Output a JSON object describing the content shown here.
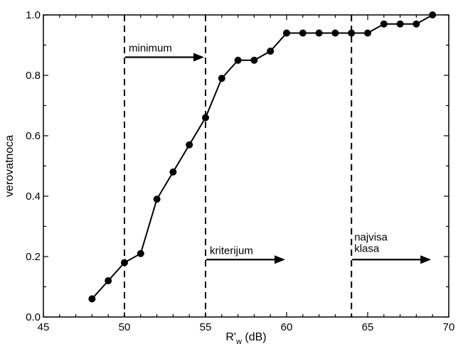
{
  "chart_data": {
    "type": "line",
    "title": "",
    "xlabel": {
      "main": "R'",
      "subscript": "w",
      "unit": "(dB)"
    },
    "ylabel": "verovatnoca",
    "xlim": [
      45,
      70
    ],
    "ylim": [
      0.0,
      1.0
    ],
    "xticks": [
      "45",
      "50",
      "55",
      "60",
      "65",
      "70"
    ],
    "yticks": [
      "0.0",
      "0.2",
      "0.4",
      "0.6",
      "0.8",
      "1.0"
    ],
    "grid": false,
    "series": [
      {
        "x": [
          48,
          49,
          50,
          51,
          52,
          53,
          54,
          55,
          56,
          57,
          58,
          59,
          60,
          61,
          62,
          63,
          64,
          65,
          66,
          67,
          68,
          69
        ],
        "y": [
          0.06,
          0.12,
          0.18,
          0.21,
          0.39,
          0.48,
          0.57,
          0.66,
          0.79,
          0.85,
          0.85,
          0.88,
          0.94,
          0.94,
          0.94,
          0.94,
          0.94,
          0.94,
          0.97,
          0.97,
          0.97,
          1.0
        ]
      }
    ],
    "vlines": [
      50,
      55,
      64
    ],
    "annotations": [
      {
        "text": "minimum",
        "x_start": 50,
        "x_end": 55,
        "y": 0.86
      },
      {
        "text": "kriterijum",
        "x_start": 55,
        "x_end": 60,
        "y": 0.19
      },
      {
        "text": "najvisa",
        "text2": "klasa",
        "x_start": 64,
        "x_end": 69,
        "y": 0.19
      }
    ]
  }
}
